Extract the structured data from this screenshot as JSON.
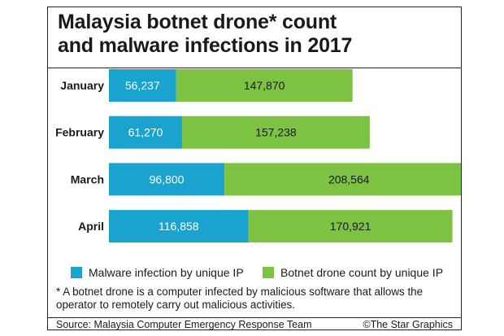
{
  "colors": {
    "malware": "#1aa3cf",
    "botnet": "#7dc242"
  },
  "title_lines": [
    "Malaysia botnet drone* count",
    "and malware infections in 2017"
  ],
  "footnote": "* A botnet drone is a computer infected by malicious software that allows the operator to remotely carry out malicious activities.",
  "source": "Source: Malaysia Computer Emergency Response Team",
  "credit": "©The Star Graphics",
  "chart_data": {
    "type": "bar",
    "orientation": "horizontal",
    "stacked": true,
    "categories": [
      "January",
      "February",
      "March",
      "April"
    ],
    "series": [
      {
        "name": "Malware infection by unique IP",
        "values": [
          56237,
          61270,
          96800,
          116858
        ],
        "labels": [
          "56,237",
          "61,270",
          "96,800",
          "116,858"
        ]
      },
      {
        "name": "Botnet drone count by unique IP",
        "values": [
          147870,
          157238,
          208564,
          170921
        ],
        "labels": [
          "147,870",
          "157,238",
          "208,564",
          "170,921"
        ]
      }
    ],
    "legend": "bottom",
    "grid": false
  }
}
